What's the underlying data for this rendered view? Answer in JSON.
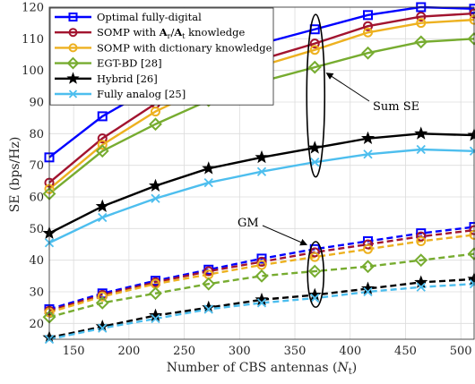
{
  "chart_data": {
    "type": "line",
    "xlabel": "Number of CBS antennas (N_t)",
    "ylabel": "SE (bps/Hz)",
    "xlim": [
      128,
      512
    ],
    "ylim": [
      15,
      120
    ],
    "xticks": [
      150,
      200,
      250,
      300,
      350,
      400,
      450,
      500
    ],
    "yticks": [
      20,
      30,
      40,
      50,
      60,
      70,
      80,
      90,
      100,
      110,
      120
    ],
    "grid": true,
    "legend_position": "top-left",
    "x": [
      128,
      176,
      224,
      272,
      320,
      368,
      416,
      464,
      512
    ],
    "series": [
      {
        "name": "Optimal fully-digital",
        "color": "#0000ff",
        "marker": "square",
        "style": "solid",
        "values": [
          72.5,
          85.5,
          95,
          103,
          108.5,
          113,
          117.5,
          120,
          119.5
        ]
      },
      {
        "name": "SOMP with A_r/A_t knowledge",
        "color": "#a2142f",
        "marker": "circle",
        "style": "solid",
        "values": [
          64.5,
          78.5,
          89.5,
          97,
          103.5,
          108.5,
          114,
          117,
          118
        ]
      },
      {
        "name": "SOMP with dictionary knowledge",
        "color": "#edb120",
        "marker": "circle",
        "style": "solid",
        "values": [
          62.5,
          76.5,
          87,
          95,
          101.5,
          106.5,
          112,
          115,
          116
        ]
      },
      {
        "name": "EGT-BD [28]",
        "color": "#77ac30",
        "marker": "diamond",
        "style": "solid",
        "values": [
          61,
          74.5,
          83,
          90.5,
          96.5,
          101,
          105.5,
          109,
          110
        ]
      },
      {
        "name": "Hybrid [26]",
        "color": "#000000",
        "marker": "star",
        "style": "solid",
        "values": [
          48.5,
          57,
          63.5,
          69,
          72.5,
          75.5,
          78.5,
          80,
          79.5
        ]
      },
      {
        "name": "Fully analog [25]",
        "color": "#4dbeee",
        "marker": "x",
        "style": "solid",
        "values": [
          45.5,
          53.5,
          59.5,
          64.5,
          68,
          71,
          73.5,
          75,
          74.5
        ]
      },
      {
        "name": "",
        "color": "#0000ff",
        "marker": "square",
        "style": "dashed",
        "values": [
          24.5,
          29.5,
          33.5,
          37,
          40.5,
          43.5,
          46,
          48.5,
          50.5
        ]
      },
      {
        "name": "",
        "color": "#a2142f",
        "marker": "circle",
        "style": "dashed",
        "values": [
          24,
          29,
          33,
          36.5,
          39.5,
          42.5,
          45,
          47.5,
          49.5
        ]
      },
      {
        "name": "",
        "color": "#edb120",
        "marker": "circle",
        "style": "dashed",
        "values": [
          23.5,
          28.5,
          32.5,
          35.5,
          38.5,
          41,
          43.5,
          46,
          48
        ]
      },
      {
        "name": "",
        "color": "#77ac30",
        "marker": "diamond",
        "style": "dashed",
        "values": [
          22,
          26.5,
          29.5,
          32.5,
          35,
          36.5,
          38,
          40,
          42
        ]
      },
      {
        "name": "",
        "color": "#000000",
        "marker": "star",
        "style": "dashed",
        "values": [
          15.5,
          19,
          22.5,
          25,
          27.5,
          29,
          31,
          33,
          34
        ]
      },
      {
        "name": "",
        "color": "#4dbeee",
        "marker": "x",
        "style": "dashed",
        "values": [
          15,
          18.5,
          21.5,
          24.5,
          26.5,
          28,
          30,
          31.5,
          32.5
        ]
      }
    ],
    "annotations": [
      {
        "text": "Sum SE",
        "target": "solid curves at N_t = 368"
      },
      {
        "text": "GM",
        "target": "dashed curves at N_t = 368"
      }
    ]
  }
}
